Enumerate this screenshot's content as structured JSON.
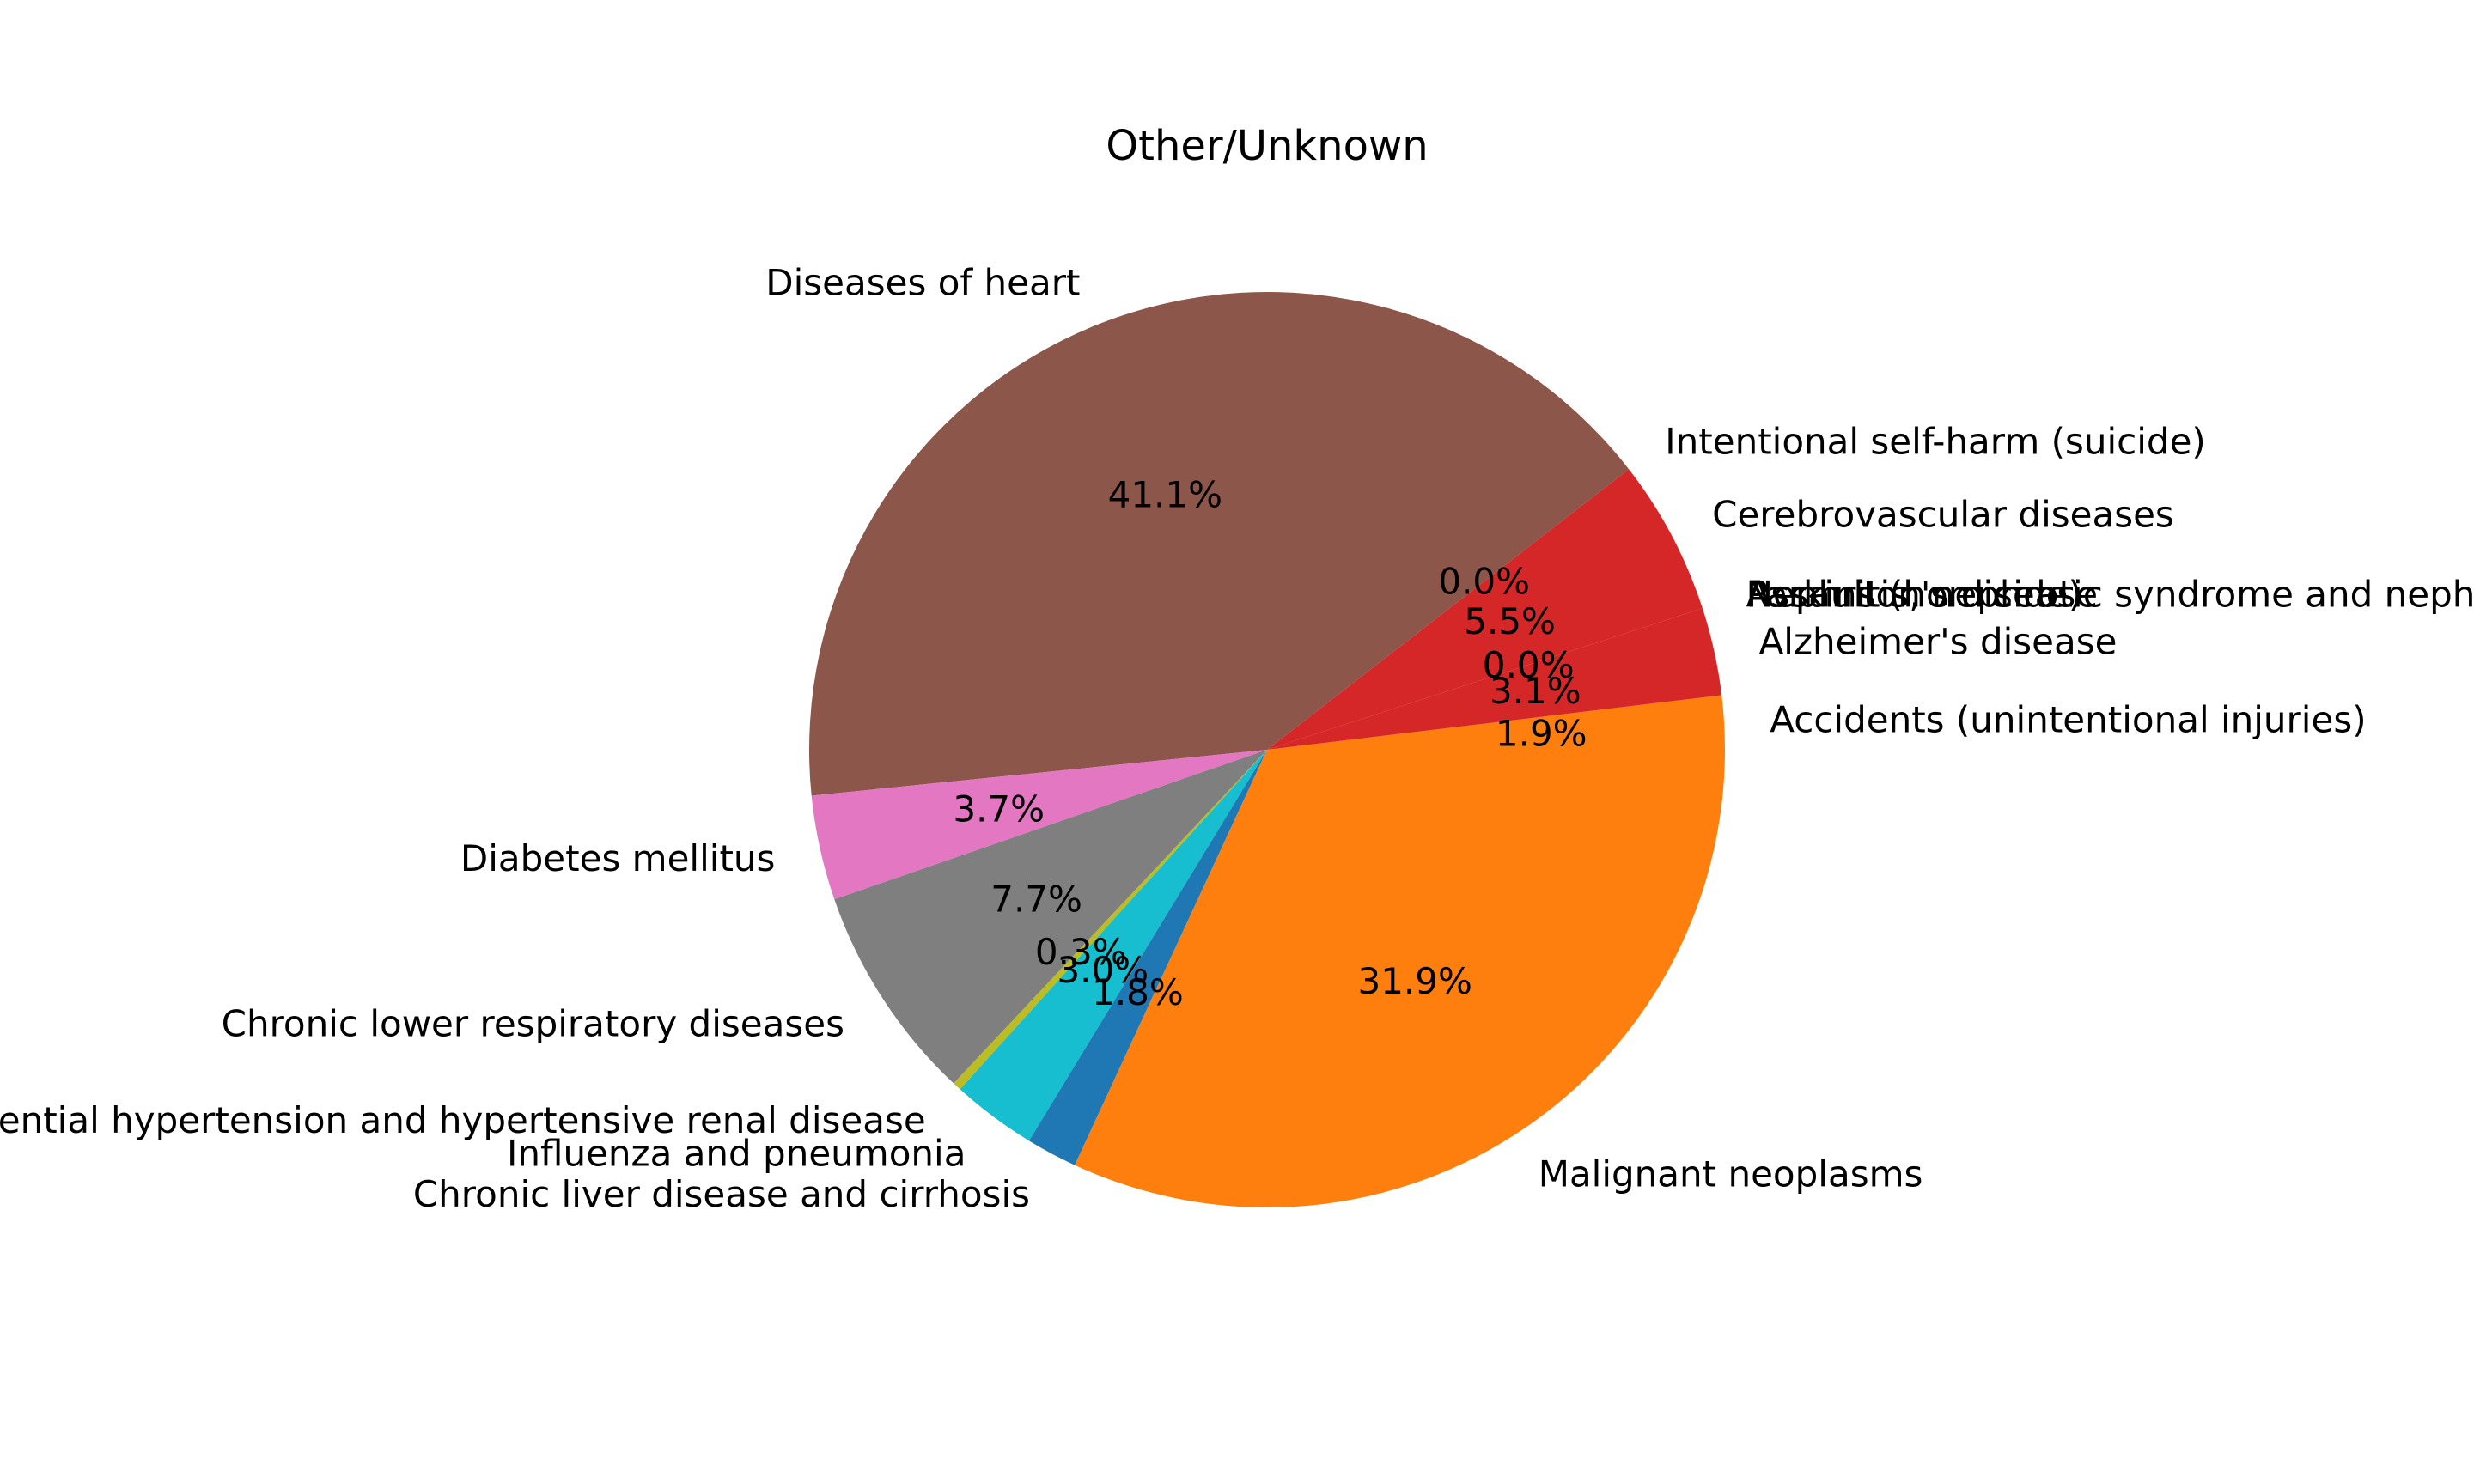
{
  "chart_data": {
    "type": "pie",
    "title": "Other/Unknown",
    "start_angle_deg": 0,
    "direction": "counterclockwise",
    "slices": [
      {
        "label": "Accidents (unintentional injuries)",
        "pct_label": "1.9%",
        "value": 1.9,
        "color": "#ff7f0e"
      },
      {
        "label": "Alzheimer's disease",
        "pct_label": "3.1%",
        "value": 3.1,
        "color": "#d62728"
      },
      {
        "label": "Assault (homicide)",
        "pct_label": "0.0%",
        "value": 0.0,
        "color": "#2ca02c"
      },
      {
        "label": "Cerebrovascular diseases",
        "pct_label": "5.5%",
        "value": 5.5,
        "color": "#d62728"
      },
      {
        "label": "Chronic liver disease and cirrhosis",
        "pct_label": "1.8%",
        "value": 1.8,
        "color": "#1f77b4"
      },
      {
        "label": "Chronic lower respiratory diseases",
        "pct_label": "7.7%",
        "value": 7.7,
        "color": "#7f7f7f"
      },
      {
        "label": "Diabetes mellitus",
        "pct_label": "3.7%",
        "value": 3.7,
        "color": "#e377c2"
      },
      {
        "label": "Diseases of heart",
        "pct_label": "41.1%",
        "value": 41.1,
        "color": "#8c564b"
      },
      {
        "label": "Essential hypertension and hypertensive renal disease",
        "pct_label": "0.3%",
        "value": 0.3,
        "color": "#bcbd22"
      },
      {
        "label": "Influenza and pneumonia",
        "pct_label": "3.0%",
        "value": 3.0,
        "color": "#17becf"
      },
      {
        "label": "Intentional self-harm (suicide)",
        "pct_label": "0.0%",
        "value": 0.0,
        "color": "#1f77b4"
      },
      {
        "label": "Malignant neoplasms",
        "pct_label": "31.9%",
        "value": 31.9,
        "color": "#ff7f0e"
      },
      {
        "label": "Nephritis, nephrotic syndrome and nephrosis",
        "pct_label": "0.0%",
        "value": 0.0,
        "color": "#2ca02c"
      },
      {
        "label": "Parkinson's disease",
        "pct_label": "0.0%",
        "value": 0.0,
        "color": "#d62728"
      }
    ],
    "draw_order": [
      0,
      1,
      12,
      13,
      2,
      3,
      10,
      7,
      6,
      5,
      8,
      9,
      4,
      11
    ]
  }
}
